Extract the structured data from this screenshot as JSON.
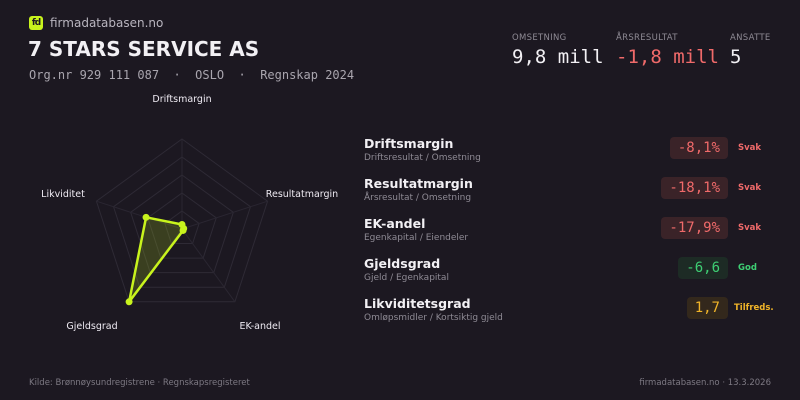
{
  "brand": {
    "logo_text": "fd",
    "name": "firmadatabasen.no",
    "accent": "#c8f31d"
  },
  "company": {
    "name": "7 STARS SERVICE AS",
    "subtitle": "Org.nr 929 111 087  ·  OSLO  ·  Regnskap 2024"
  },
  "kpis": [
    {
      "label": "OMSETNING",
      "value": "9,8 mill",
      "color": "#f2f0f4"
    },
    {
      "label": "ÅRSRESULTAT",
      "value": "-1,8 mill",
      "color": "#f06a6a"
    },
    {
      "label": "ANSATTE",
      "value": "5",
      "color": "#f2f0f4"
    }
  ],
  "chart_data": {
    "type": "radar",
    "axes": [
      "Driftsmargin",
      "Resultatmargin",
      "EK-andel",
      "Gjeldsgrad",
      "Likviditet"
    ],
    "scores": [
      0.05,
      0.02,
      0.02,
      1.0,
      0.42
    ],
    "range": [
      0,
      1
    ],
    "grid_levels": 5,
    "color": "#c8f31d"
  },
  "metrics": [
    {
      "name": "Driftsmargin",
      "desc": "Driftsresultat / Omsetning",
      "value": "-8,1%",
      "status": "Svak",
      "color": "#f06a6a",
      "bg": "#3a2328"
    },
    {
      "name": "Resultatmargin",
      "desc": "Årsresultat / Omsetning",
      "value": "-18,1%",
      "status": "Svak",
      "color": "#f06a6a",
      "bg": "#3a2328"
    },
    {
      "name": "EK-andel",
      "desc": "Egenkapital / Eiendeler",
      "value": "-17,9%",
      "status": "Svak",
      "color": "#f06a6a",
      "bg": "#3a2328"
    },
    {
      "name": "Gjeldsgrad",
      "desc": "Gjeld / Egenkapital",
      "value": "-6,6",
      "status": "God",
      "color": "#3ecf74",
      "bg": "#1d2b25"
    },
    {
      "name": "Likviditetsgrad",
      "desc": "Omløpsmidler / Kortsiktig gjeld",
      "value": "1,7",
      "status": "Tilfreds.",
      "color": "#f0b429",
      "bg": "#33281c"
    }
  ],
  "footer": {
    "source": "Kilde: Brønnøysundregistrene · Regnskapsregisteret",
    "site_date": "firmadatabasen.no · 13.3.2026"
  }
}
